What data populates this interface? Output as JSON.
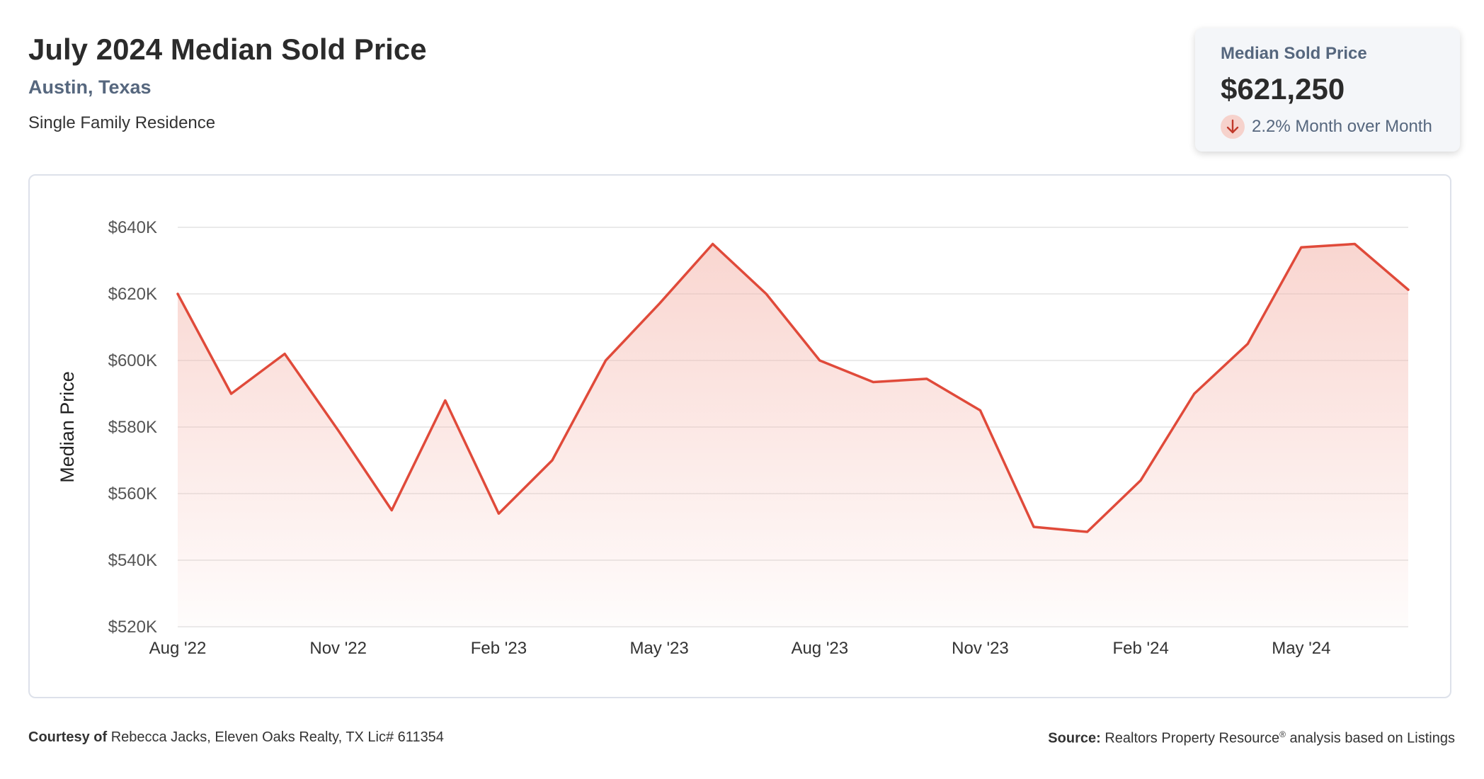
{
  "header": {
    "title": "July 2024 Median Sold Price",
    "location": "Austin, Texas",
    "property_type": "Single Family Residence"
  },
  "summary": {
    "label": "Median Sold Price",
    "value": "$621,250",
    "change": "2.2% Month over Month",
    "change_icon": "arrow-down-icon"
  },
  "footer": {
    "courtesy_label": "Courtesy of",
    "courtesy_text": "Rebecca Jacks, Eleven Oaks Realty, TX Lic# 611354",
    "source_label": "Source:",
    "source_text_1": "Realtors Property Resource",
    "source_mark": "®",
    "source_text_2": " analysis based on Listings"
  },
  "colors": {
    "line": "#e04a3a",
    "fill_top": "#f4b4aa",
    "grid": "#e4e4e4",
    "accent_text": "#56677e"
  },
  "chart_data": {
    "type": "area",
    "ylabel": "Median Price",
    "ylim": [
      520000,
      640000
    ],
    "y_ticks": [
      520000,
      540000,
      560000,
      580000,
      600000,
      620000,
      640000
    ],
    "y_tick_labels": [
      "$520K",
      "$540K",
      "$560K",
      "$580K",
      "$600K",
      "$620K",
      "$640K"
    ],
    "x_tick_labels": [
      "Aug '22",
      "Nov '22",
      "Feb '23",
      "May '23",
      "Aug '23",
      "Nov '23",
      "Feb '24",
      "May '24"
    ],
    "x_tick_indices": [
      0,
      3,
      6,
      9,
      12,
      15,
      18,
      21
    ],
    "categories": [
      "Aug 2022",
      "Sep 2022",
      "Oct 2022",
      "Nov 2022",
      "Dec 2022",
      "Jan 2023",
      "Feb 2023",
      "Mar 2023",
      "Apr 2023",
      "May 2023",
      "Jun 2023",
      "Jul 2023",
      "Aug 2023",
      "Sep 2023",
      "Oct 2023",
      "Nov 2023",
      "Dec 2023",
      "Jan 2024",
      "Feb 2024",
      "Mar 2024",
      "Apr 2024",
      "May 2024",
      "Jun 2024",
      "Jul 2024"
    ],
    "values": [
      620000,
      590000,
      602000,
      579000,
      555000,
      588000,
      554000,
      570000,
      600000,
      617000,
      635000,
      620000,
      600000,
      593500,
      594500,
      585000,
      550000,
      548500,
      564000,
      590000,
      605000,
      634000,
      635000,
      621250
    ],
    "grid": true,
    "legend": "none"
  }
}
